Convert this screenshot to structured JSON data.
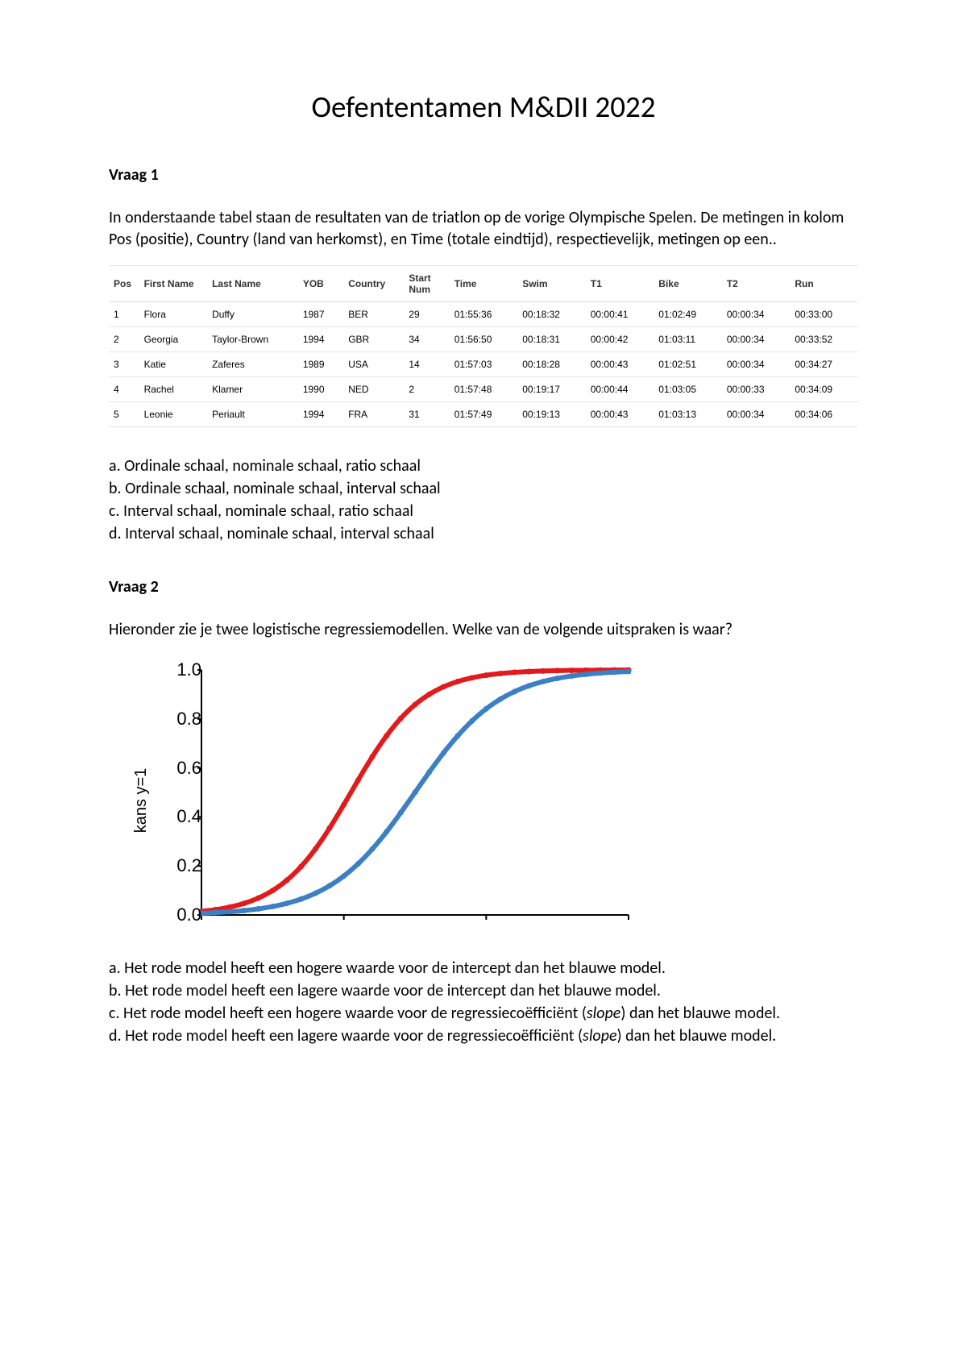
{
  "title": "Oefententamen M&DII 2022",
  "q1": {
    "heading": "Vraag 1",
    "intro": "In onderstaande tabel staan de resultaten van de triatlon op de vorige Olympische Spelen.  De metingen in kolom Pos (positie), Country (land van herkomst), en Time (totale eindtijd), respectievelijk, metingen op een.."
  },
  "table": {
    "columns": [
      "Pos",
      "First Name",
      "Last Name",
      "YOB",
      "Country",
      "Start Num",
      "Time",
      "Swim",
      "T1",
      "Bike",
      "T2",
      "Run"
    ],
    "col_widths_pct": [
      4,
      9,
      12,
      6,
      8,
      6,
      9,
      9,
      9,
      9,
      9,
      9
    ],
    "rows": [
      [
        "1",
        "Flora",
        "Duffy",
        "1987",
        "BER",
        "29",
        "01:55:36",
        "00:18:32",
        "00:00:41",
        "01:02:49",
        "00:00:34",
        "00:33:00"
      ],
      [
        "2",
        "Georgia",
        "Taylor-Brown",
        "1994",
        "GBR",
        "34",
        "01:56:50",
        "00:18:31",
        "00:00:42",
        "01:03:11",
        "00:00:34",
        "00:33:52"
      ],
      [
        "3",
        "Katie",
        "Zaferes",
        "1989",
        "USA",
        "14",
        "01:57:03",
        "00:18:28",
        "00:00:43",
        "01:02:51",
        "00:00:34",
        "00:34:27"
      ],
      [
        "4",
        "Rachel",
        "Klamer",
        "1990",
        "NED",
        "2",
        "01:57:48",
        "00:19:17",
        "00:00:44",
        "01:03:05",
        "00:00:33",
        "00:34:09"
      ],
      [
        "5",
        "Leonie",
        "Periault",
        "1994",
        "FRA",
        "31",
        "01:57:49",
        "00:19:13",
        "00:00:43",
        "01:03:13",
        "00:00:34",
        "00:34:06"
      ]
    ]
  },
  "q1_options": {
    "a": "a. Ordinale schaal, nominale schaal, ratio schaal",
    "b": "b. Ordinale schaal, nominale schaal, interval schaal",
    "c": "c. Interval schaal, nominale schaal, ratio schaal",
    "d": "d. Interval schaal, nominale schaal, interval schaal"
  },
  "q2": {
    "heading": "Vraag 2",
    "intro": "Hieronder zie je twee logistische regressiemodellen. Welke van de volgende uitspraken is waar?"
  },
  "chart": {
    "type": "line",
    "ylabel": "kans y=1",
    "ylim": [
      0.0,
      1.0
    ],
    "yticks": [
      0.0,
      0.2,
      0.4,
      0.6,
      0.8,
      1.0
    ],
    "ytick_labels": [
      "0.0",
      "0.2",
      "0.4",
      "0.6",
      "0.8",
      "1.0"
    ],
    "x_n_marks": 4,
    "axis_color": "#000000",
    "tick_len": 6,
    "background_color": "#ffffff",
    "series": [
      {
        "name": "red",
        "color": "#e31a1c",
        "line_width": 6,
        "marker": "circle",
        "marker_size": 3,
        "intercept_x50": 0.35,
        "slope": 12
      },
      {
        "name": "blue",
        "color": "#3b7fc4",
        "line_width": 6,
        "marker": "circle",
        "marker_size": 3,
        "intercept_x50": 0.5,
        "slope": 10
      }
    ],
    "title_fontsize": 22,
    "label_fontsize": 20
  },
  "q2_options": {
    "a": "a. Het rode model heeft een hogere waarde voor de intercept dan het blauwe model.",
    "b": "b. Het rode model heeft een lagere waarde voor de intercept dan het blauwe model.",
    "c_pre": "c. Het rode model heeft een hogere waarde voor de regressiecoëfficiënt (",
    "c_it": "slope",
    "c_post": ") dan het blauwe model.",
    "d_pre": "d. Het rode model heeft een lagere waarde voor de regressiecoëfficiënt (",
    "d_it": "slope",
    "d_post": ") dan het blauwe model."
  }
}
